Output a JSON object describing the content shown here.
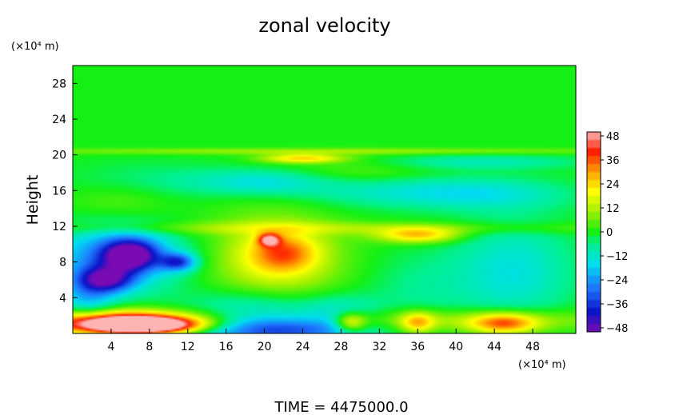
{
  "chart_data": {
    "type": "heatmap",
    "title": "zonal velocity",
    "xlabel": "",
    "ylabel": "Height",
    "x_unit": "(×10⁴ m)",
    "y_unit": "(×10⁴ m)",
    "xlim": [
      0,
      52.5
    ],
    "ylim": [
      0,
      30
    ],
    "x_ticks": [
      4,
      8,
      12,
      16,
      20,
      24,
      28,
      32,
      36,
      40,
      44,
      48
    ],
    "y_ticks": [
      4,
      8,
      12,
      16,
      20,
      24,
      28
    ],
    "colorbar": {
      "ticks": [
        48,
        36,
        24,
        12,
        0,
        -12,
        -24,
        -36,
        -48
      ],
      "range": [
        -50,
        50
      ],
      "stops": [
        {
          "v": -50,
          "color": "#7a0ab4"
        },
        {
          "v": -40,
          "color": "#0a14c8"
        },
        {
          "v": -28,
          "color": "#1e78ff"
        },
        {
          "v": -16,
          "color": "#00dcf0"
        },
        {
          "v": -6,
          "color": "#00f08c"
        },
        {
          "v": 0,
          "color": "#14f014"
        },
        {
          "v": 10,
          "color": "#a0f000"
        },
        {
          "v": 20,
          "color": "#ffff00"
        },
        {
          "v": 30,
          "color": "#ffa000"
        },
        {
          "v": 40,
          "color": "#ff2000"
        },
        {
          "v": 50,
          "color": "#ffb4b4"
        }
      ]
    },
    "background_value": 0,
    "features": [
      {
        "x": 26,
        "y": 1.5,
        "sx": 26,
        "sy": 0.9,
        "value": 14
      },
      {
        "x": 5,
        "y": 1.2,
        "sx": 5.5,
        "sy": 0.9,
        "value": 44
      },
      {
        "x": 7.5,
        "y": 0.9,
        "sx": 4,
        "sy": 0.6,
        "value": 52
      },
      {
        "x": 21,
        "y": 0.6,
        "sx": 6,
        "sy": 1.2,
        "value": -40
      },
      {
        "x": 19,
        "y": 3,
        "sx": 5,
        "sy": 1.6,
        "value": -14
      },
      {
        "x": 4.5,
        "y": 8.5,
        "sx": 5,
        "sy": 2.5,
        "value": -26
      },
      {
        "x": 6,
        "y": 8.8,
        "sx": 2,
        "sy": 1.2,
        "value": -42
      },
      {
        "x": 3.5,
        "y": 6,
        "sx": 2,
        "sy": 1,
        "value": -34
      },
      {
        "x": 11,
        "y": 8,
        "sx": 1.3,
        "sy": 0.7,
        "value": -30
      },
      {
        "x": 1.5,
        "y": 4,
        "sx": 2,
        "sy": 2,
        "value": -16
      },
      {
        "x": 21,
        "y": 8,
        "sx": 5,
        "sy": 4,
        "value": 16
      },
      {
        "x": 22,
        "y": 9,
        "sx": 2.5,
        "sy": 1.5,
        "value": 24
      },
      {
        "x": 20.5,
        "y": 10.5,
        "sx": 0.8,
        "sy": 0.5,
        "value": 34
      },
      {
        "x": 28,
        "y": 2,
        "sx": 3,
        "sy": 1.5,
        "value": -14
      },
      {
        "x": 29,
        "y": 1.2,
        "sx": 1.2,
        "sy": 0.8,
        "value": 26
      },
      {
        "x": 36,
        "y": 1.2,
        "sx": 1.2,
        "sy": 0.8,
        "value": 22
      },
      {
        "x": 45,
        "y": 1.1,
        "sx": 2.5,
        "sy": 0.8,
        "value": 32
      },
      {
        "x": 46,
        "y": 7,
        "sx": 4.5,
        "sy": 4,
        "value": -14
      },
      {
        "x": 36,
        "y": 5,
        "sx": 4,
        "sy": 3,
        "value": -6
      },
      {
        "x": 36,
        "y": 11,
        "sx": 3,
        "sy": 0.6,
        "value": 26
      },
      {
        "x": 26,
        "y": 11.8,
        "sx": 26,
        "sy": 0.5,
        "value": 9
      },
      {
        "x": 20,
        "y": 17,
        "sx": 5,
        "sy": 1,
        "value": -14
      },
      {
        "x": 8,
        "y": 17,
        "sx": 6,
        "sy": 1.5,
        "value": -6
      },
      {
        "x": 34,
        "y": 16,
        "sx": 8,
        "sy": 1.3,
        "value": -12
      },
      {
        "x": 44,
        "y": 15.5,
        "sx": 6,
        "sy": 1.2,
        "value": -9
      },
      {
        "x": 30,
        "y": 18,
        "sx": 6,
        "sy": 1.2,
        "value": 7
      },
      {
        "x": 24,
        "y": 19.6,
        "sx": 3,
        "sy": 0.35,
        "value": 24
      },
      {
        "x": 26,
        "y": 20.4,
        "sx": 26,
        "sy": 0.25,
        "value": 10
      },
      {
        "x": 42,
        "y": 19.2,
        "sx": 8,
        "sy": 0.6,
        "value": -10
      },
      {
        "x": 5,
        "y": 15,
        "sx": 4,
        "sy": 1.5,
        "value": 6
      }
    ]
  },
  "footer": {
    "time_text": "TIME = 4475000.0"
  }
}
